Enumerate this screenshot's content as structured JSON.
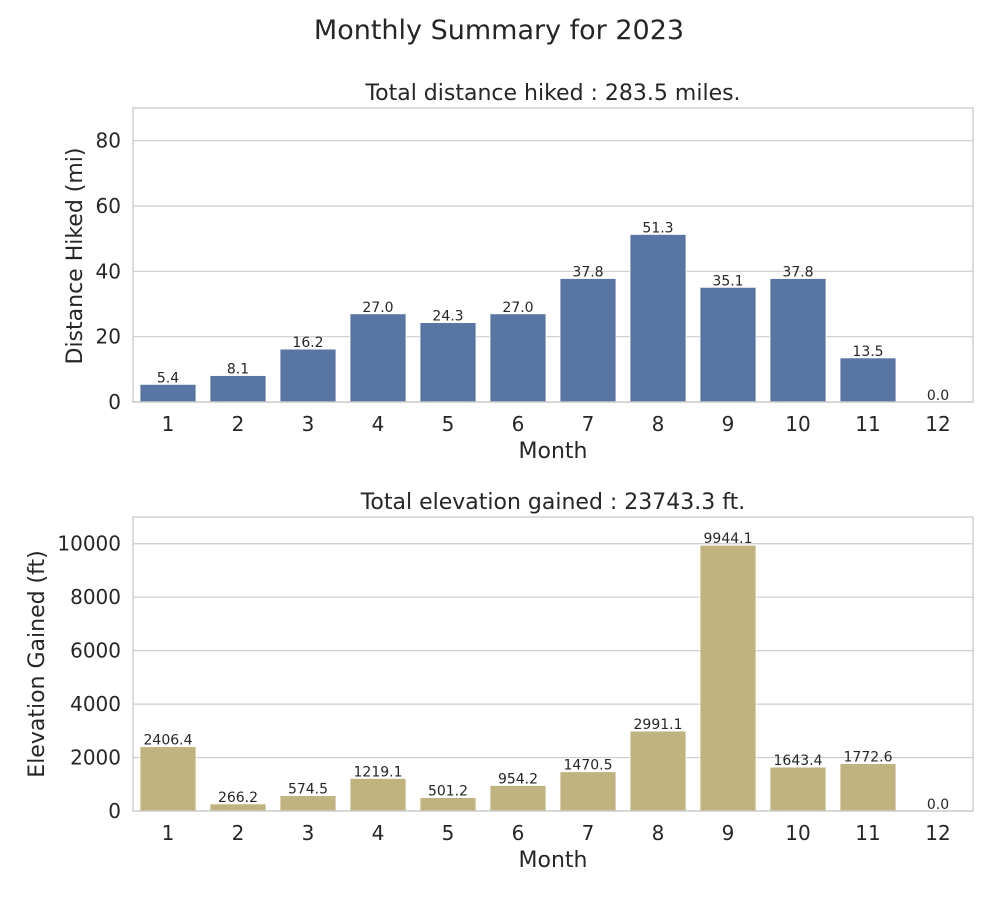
{
  "suptitle": "Monthly Summary for 2023",
  "chart_data": [
    {
      "type": "bar",
      "title": "Total distance hiked : 283.5 miles.",
      "xlabel": "Month",
      "ylabel": "Distance Hiked (mi)",
      "categories": [
        "1",
        "2",
        "3",
        "4",
        "5",
        "6",
        "7",
        "8",
        "9",
        "10",
        "11",
        "12"
      ],
      "values": [
        5.4,
        8.1,
        16.2,
        27.0,
        24.3,
        27.0,
        37.8,
        51.3,
        35.1,
        37.8,
        13.5,
        0.0
      ],
      "value_labels": [
        "5.4",
        "8.1",
        "16.2",
        "27.0",
        "24.3",
        "27.0",
        "37.8",
        "51.3",
        "35.1",
        "37.8",
        "13.5",
        "0.0"
      ],
      "ylim": [
        0,
        90
      ],
      "yticks": [
        0,
        20,
        40,
        60,
        80
      ],
      "grid": true,
      "color": "#5975a4"
    },
    {
      "type": "bar",
      "title": "Total elevation gained : 23743.3 ft.",
      "xlabel": "Month",
      "ylabel": "Elevation Gained (ft)",
      "categories": [
        "1",
        "2",
        "3",
        "4",
        "5",
        "6",
        "7",
        "8",
        "9",
        "10",
        "11",
        "12"
      ],
      "values": [
        2406.4,
        266.2,
        574.5,
        1219.1,
        501.2,
        954.2,
        1470.5,
        2991.1,
        9944.1,
        1643.4,
        1772.6,
        0.0
      ],
      "value_labels": [
        "2406.4",
        "266.2",
        "574.5",
        "1219.1",
        "501.2",
        "954.2",
        "1470.5",
        "2991.1",
        "9944.1",
        "1643.4",
        "1772.6",
        "0.0"
      ],
      "ylim": [
        0,
        11000
      ],
      "yticks": [
        0,
        2000,
        4000,
        6000,
        8000,
        10000
      ],
      "grid": true,
      "color": "#c1b37f"
    }
  ]
}
